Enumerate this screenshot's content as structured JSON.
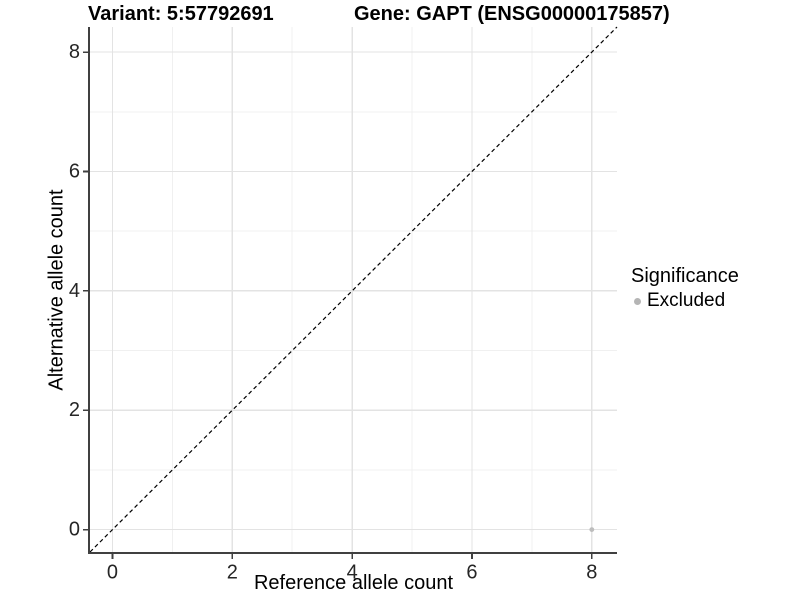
{
  "chart_data": {
    "type": "scatter",
    "titles": {
      "left": "Variant: 5:57792691",
      "right": "Gene: GAPT (ENSG00000175857)"
    },
    "xlabel": "Reference allele count",
    "ylabel": "Alternative allele count",
    "xlim": [
      -0.375,
      8.42
    ],
    "ylim": [
      -0.375,
      8.42
    ],
    "xticks": [
      0,
      2,
      4,
      6,
      8
    ],
    "yticks": [
      0,
      2,
      4,
      6,
      8
    ],
    "xticks_minor": [
      1,
      3,
      5,
      7
    ],
    "yticks_minor": [
      1,
      3,
      5,
      7
    ],
    "grid": "major_and_minor",
    "reference_line": {
      "type": "identity_y_equals_x",
      "style": "dashed",
      "color": "#000000"
    },
    "series": [
      {
        "name": "Excluded",
        "marker": "circle",
        "color": "#bdbdbd",
        "points": [
          {
            "x": 8,
            "y": 0
          }
        ]
      }
    ],
    "legend": {
      "position": "right",
      "title": "Significance",
      "items": [
        {
          "label": "Excluded",
          "color": "#b5b5b5"
        }
      ]
    }
  },
  "style": {
    "background": "#ffffff",
    "axis_line_color": "#404040",
    "grid_major_color": "#e3e3e3",
    "grid_minor_color": "#f0f0f0",
    "tick_label_color": "#262626",
    "title_color": "#000000"
  }
}
